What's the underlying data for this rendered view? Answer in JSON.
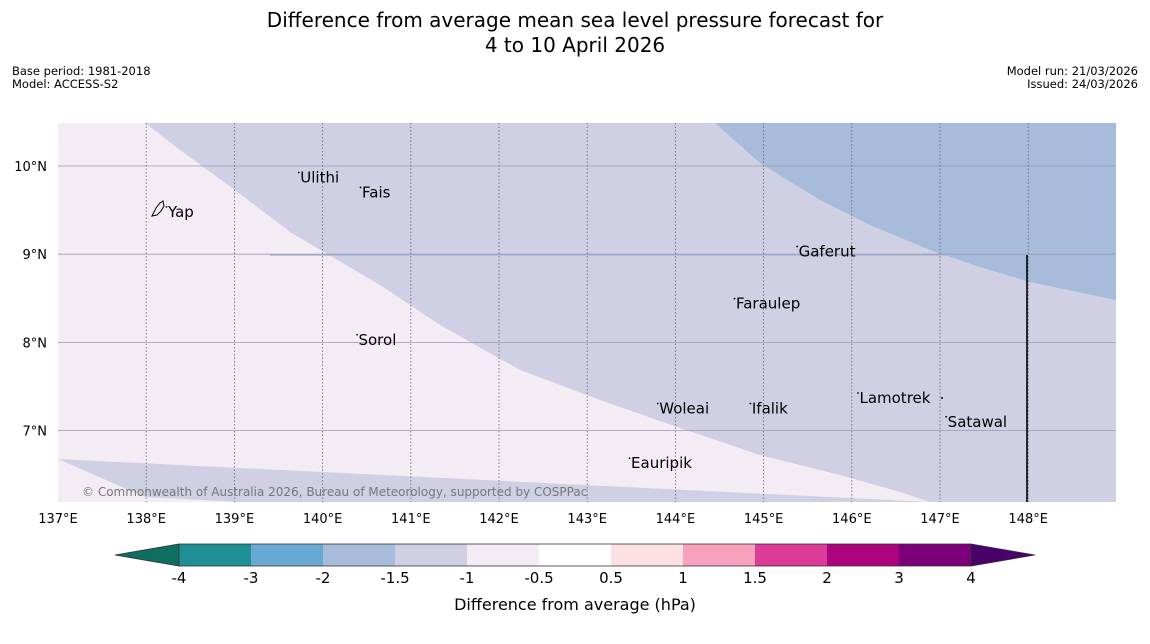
{
  "title": {
    "line1": "Difference from average mean sea level pressure forecast for",
    "line2": "4 to 10 April 2026"
  },
  "meta_left": {
    "base_period": "Base period: 1981-2018",
    "model": "Model: ACCESS-S2"
  },
  "meta_right": {
    "model_run": "Model run: 21/03/2026",
    "issued": "Issued: 24/03/2026"
  },
  "map": {
    "lat_labels": [
      "10°N",
      "9°N",
      "8°N",
      "7°N"
    ],
    "lon_labels": [
      "137°E",
      "138°E",
      "139°E",
      "140°E",
      "141°E",
      "142°E",
      "143°E",
      "144°E",
      "145°E",
      "146°E",
      "147°E",
      "148°E"
    ],
    "places": [
      {
        "name": "Yap",
        "lon": 138.23,
        "lat": 9.48
      },
      {
        "name": "Ulithi",
        "lon": 139.73,
        "lat": 9.87
      },
      {
        "name": "Fais",
        "lon": 140.43,
        "lat": 9.7
      },
      {
        "name": "Gaferut",
        "lon": 145.38,
        "lat": 9.03
      },
      {
        "name": "Faraulep",
        "lon": 144.67,
        "lat": 8.44
      },
      {
        "name": "Sorol",
        "lon": 140.39,
        "lat": 8.03
      },
      {
        "name": "Lamotrek",
        "lon": 146.07,
        "lat": 7.37
      },
      {
        "name": "Woleai",
        "lon": 143.8,
        "lat": 7.25
      },
      {
        "name": "Ifalik",
        "lon": 144.85,
        "lat": 7.25
      },
      {
        "name": "Satawal",
        "lon": 147.07,
        "lat": 7.1
      },
      {
        "name": "Eauripik",
        "lon": 143.48,
        "lat": 6.63
      }
    ],
    "copyright": "© Commonwealth of Australia 2026, Bureau of Meteorology, supported by COSPPac",
    "colors": {
      "low1": "#f3ecf5",
      "low15": "#cfd0e4",
      "low2": "#a7bbdb",
      "grid": "#9a9ab0",
      "land": "#000000"
    }
  },
  "colorbar": {
    "label": "Difference from average (hPa)",
    "ticks": [
      "-4",
      "-3",
      "-2",
      "-1.5",
      "-1",
      "-0.5",
      "0.5",
      "1",
      "1.5",
      "2",
      "3",
      "4"
    ],
    "colors": [
      "#0d6e61",
      "#1f8f96",
      "#68a9d3",
      "#a7bbdb",
      "#cfd0e4",
      "#f3ecf5",
      "#ffffff",
      "#fde0e1",
      "#f7a1bd",
      "#dc3b98",
      "#ad037e",
      "#7b0079",
      "#49006a"
    ]
  }
}
